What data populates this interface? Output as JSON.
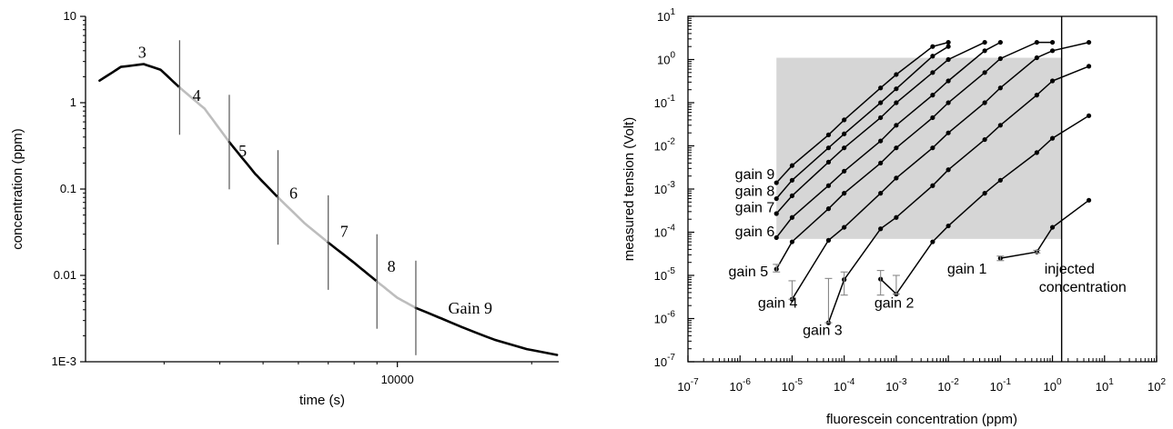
{
  "chart_data": [
    {
      "type": "line",
      "xlabel": "time (s)",
      "ylabel": "concentration (ppm)",
      "y_scale": "log",
      "x_scale": "log",
      "xlim": [
        2000,
        23000
      ],
      "ylim": [
        0.001,
        10
      ],
      "x_ticks": [
        {
          "value": 10000,
          "label": "10000"
        }
      ],
      "y_ticks": [
        {
          "value": 10,
          "label": "10"
        },
        {
          "value": 1,
          "label": "1"
        },
        {
          "value": 0.1,
          "label": "0.1"
        },
        {
          "value": 0.01,
          "label": "0.01"
        },
        {
          "value": 0.001,
          "label": "1E-3"
        }
      ],
      "curve": {
        "x": [
          2150,
          2400,
          2700,
          2950,
          3250,
          3700,
          4200,
          4800,
          5400,
          6200,
          7000,
          8000,
          9000,
          10000,
          11000,
          12500,
          14000,
          16500,
          19500,
          22800
        ],
        "y": [
          1.8,
          2.6,
          2.8,
          2.4,
          1.5,
          0.85,
          0.35,
          0.15,
          0.08,
          0.04,
          0.024,
          0.014,
          0.0085,
          0.0055,
          0.0042,
          0.0032,
          0.0025,
          0.0018,
          0.0014,
          0.0012
        ]
      },
      "segment_bounds": [
        3250,
        4200,
        5400,
        7000,
        9000,
        11000
      ],
      "segments": [
        {
          "label": "3",
          "x": [
            2150,
            3250
          ],
          "color": "#000000"
        },
        {
          "label": "4",
          "x": [
            3250,
            4200
          ],
          "color": "#bdbdbd"
        },
        {
          "label": "5",
          "x": [
            4200,
            5400
          ],
          "color": "#000000"
        },
        {
          "label": "6",
          "x": [
            5400,
            7000
          ],
          "color": "#bdbdbd"
        },
        {
          "label": "7",
          "x": [
            7000,
            9000
          ],
          "color": "#000000"
        },
        {
          "label": "8",
          "x": [
            9000,
            11000
          ],
          "color": "#bdbdbd"
        },
        {
          "label": "Gain 9",
          "x": [
            11000,
            22800
          ],
          "color": "#000000"
        }
      ],
      "segment_labels": [
        {
          "text": "3",
          "x": 2680,
          "y": 3.3
        },
        {
          "text": "4",
          "x": 3550,
          "y": 1.05
        },
        {
          "text": "5",
          "x": 4500,
          "y": 0.24
        },
        {
          "text": "6",
          "x": 5850,
          "y": 0.078
        },
        {
          "text": "7",
          "x": 7600,
          "y": 0.028
        },
        {
          "text": "8",
          "x": 9700,
          "y": 0.011
        },
        {
          "text": "Gain 9",
          "x": 13000,
          "y": 0.0036
        }
      ]
    },
    {
      "type": "line",
      "xlabel": "fluorescein concentration (ppm)",
      "ylabel": "measured tension (Volt)",
      "x_scale": "log",
      "y_scale": "log",
      "xlim_exp": [
        -7,
        2
      ],
      "ylim_exp": [
        -7,
        1
      ],
      "x_tick_exponents": [
        -7,
        -6,
        -5,
        -4,
        -3,
        -2,
        -1,
        0,
        1,
        2
      ],
      "y_tick_exponents": [
        -7,
        -6,
        -5,
        -4,
        -3,
        -2,
        -1,
        0,
        1
      ],
      "tick_base": "10",
      "shaded_region": {
        "x": [
          5e-06,
          1.5
        ],
        "y": [
          7e-05,
          1.1
        ],
        "color": "#d6d6d6"
      },
      "injected_concentration_x": 1.5,
      "series": [
        {
          "name": "gain 9",
          "x": [
            5e-06,
            1e-05,
            5e-05,
            0.0001,
            0.0005,
            0.001,
            0.005,
            0.01
          ],
          "y": [
            0.0014,
            0.0035,
            0.018,
            0.04,
            0.22,
            0.45,
            2.0,
            2.5
          ]
        },
        {
          "name": "gain 8",
          "x": [
            5e-06,
            1e-05,
            5e-05,
            0.0001,
            0.0005,
            0.001,
            0.005,
            0.01
          ],
          "y": [
            0.0006,
            0.0016,
            0.009,
            0.019,
            0.1,
            0.21,
            1.2,
            2.0
          ]
        },
        {
          "name": "gain 7",
          "x": [
            5e-06,
            1e-05,
            5e-05,
            0.0001,
            0.0005,
            0.001,
            0.005,
            0.01,
            0.05
          ],
          "y": [
            0.00027,
            0.0007,
            0.0042,
            0.009,
            0.045,
            0.1,
            0.5,
            1.0,
            2.5
          ]
        },
        {
          "name": "gain 6",
          "x": [
            5e-06,
            1e-05,
            5e-05,
            0.0001,
            0.0005,
            0.001,
            0.005,
            0.01,
            0.05,
            0.1
          ],
          "y": [
            7.5e-05,
            0.00022,
            0.0012,
            0.0026,
            0.013,
            0.03,
            0.15,
            0.32,
            1.6,
            2.5
          ]
        },
        {
          "name": "gain 5",
          "x": [
            5e-06,
            1e-05,
            5e-05,
            0.0001,
            0.0005,
            0.001,
            0.005,
            0.01,
            0.05,
            0.1,
            0.5,
            1.0
          ],
          "y": [
            1.4e-05,
            6e-05,
            0.00035,
            0.0008,
            0.004,
            0.009,
            0.045,
            0.1,
            0.5,
            1.05,
            2.5,
            2.5
          ]
        },
        {
          "name": "gain 4",
          "x": [
            1e-05,
            5e-05,
            0.0001,
            0.0005,
            0.001,
            0.005,
            0.01,
            0.05,
            0.1,
            0.5,
            1.0,
            5.0
          ],
          "y": [
            2.8e-06,
            6.5e-05,
            0.00013,
            0.0008,
            0.0018,
            0.009,
            0.02,
            0.1,
            0.22,
            1.1,
            1.6,
            2.5
          ]
        },
        {
          "name": "gain 3",
          "x": [
            5e-05,
            0.0001,
            0.0005,
            0.001,
            0.005,
            0.01,
            0.05,
            0.1,
            0.5,
            1.0,
            5.0
          ],
          "y": [
            8e-07,
            8e-06,
            0.00012,
            0.00022,
            0.0012,
            0.0028,
            0.014,
            0.03,
            0.15,
            0.32,
            0.7
          ]
        },
        {
          "name": "gain 2",
          "x": [
            0.0005,
            0.001,
            0.005,
            0.01,
            0.05,
            0.1,
            0.5,
            1.0,
            5.0
          ],
          "y": [
            8.2e-06,
            3.7e-06,
            6e-05,
            0.00014,
            0.0008,
            0.0016,
            0.007,
            0.015,
            0.05
          ]
        },
        {
          "name": "gain 1",
          "x": [
            0.1,
            0.5,
            1.0,
            5.0
          ],
          "y": [
            2.5e-05,
            3.5e-05,
            0.00013,
            0.00055
          ]
        }
      ],
      "error_bars": [
        {
          "x": 5e-06,
          "low": 1.2e-05,
          "high": 1.8e-05
        },
        {
          "x": 1e-05,
          "low": 2.8e-06,
          "high": 7.5e-06
        },
        {
          "x": 5e-05,
          "low": 8e-07,
          "high": 8.5e-06
        },
        {
          "x": 0.0001,
          "low": 3.5e-06,
          "high": 1.2e-05
        },
        {
          "x": 0.0005,
          "low": 3.5e-06,
          "high": 1.3e-05
        },
        {
          "x": 0.001,
          "low": 3.7e-06,
          "high": 1e-05
        },
        {
          "x": 0.1,
          "low": 2.2e-05,
          "high": 2.8e-05
        },
        {
          "x": 0.5,
          "low": 3.3e-05,
          "high": 3.8e-05
        }
      ],
      "annotations": [
        {
          "text": "gain 9",
          "x": 8e-07,
          "y": 0.0017
        },
        {
          "text": "gain 8",
          "x": 8e-07,
          "y": 0.0007
        },
        {
          "text": "gain 7",
          "x": 8e-07,
          "y": 0.00029
        },
        {
          "text": "gain 6",
          "x": 8e-07,
          "y": 8e-05
        },
        {
          "text": "gain 5",
          "x": 6e-07,
          "y": 9.5e-06
        },
        {
          "text": "gain 4",
          "x": 2.2e-06,
          "y": 1.8e-06
        },
        {
          "text": "gain 3",
          "x": 1.6e-05,
          "y": 4.2e-07
        },
        {
          "text": "gain 2",
          "x": 0.00038,
          "y": 1.8e-06
        },
        {
          "text": "gain 1",
          "x": 0.0095,
          "y": 1.1e-05
        },
        {
          "text": "injected",
          "x": 0.7,
          "y": 1.1e-05
        },
        {
          "text": "concentration",
          "x": 0.55,
          "y": 4.2e-06
        }
      ]
    }
  ]
}
